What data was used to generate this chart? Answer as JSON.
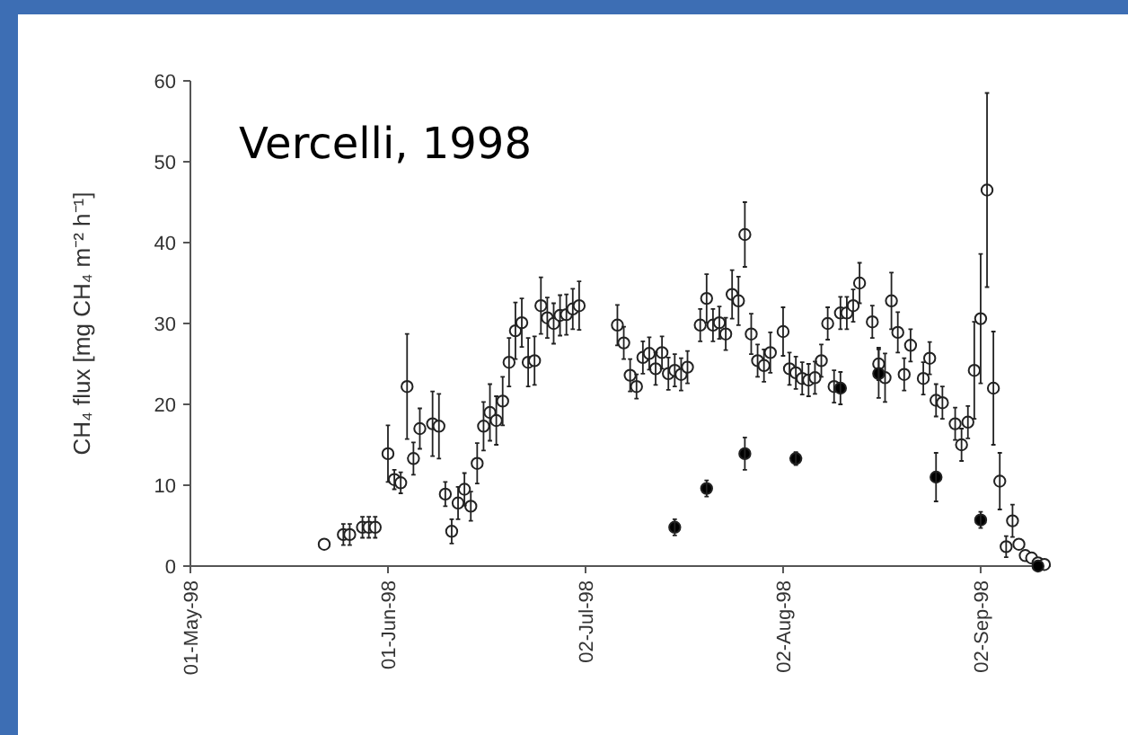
{
  "chart_data": {
    "type": "scatter",
    "title": "Vercelli, 1998",
    "ylabel": "CH₄ flux [mg CH₄ m⁻² h⁻¹]",
    "xlim": [
      "1998-05-01",
      "1998-09-13"
    ],
    "xticks": [
      {
        "value": "1998-05-01",
        "label": "01-May-98"
      },
      {
        "value": "1998-06-01",
        "label": "01-Jun-98"
      },
      {
        "value": "1998-07-02",
        "label": "02-Jul-98"
      },
      {
        "value": "1998-08-02",
        "label": "02-Aug-98"
      },
      {
        "value": "1998-09-02",
        "label": "02-Sep-98"
      }
    ],
    "ylim": [
      0,
      60
    ],
    "yticks": [
      0,
      10,
      20,
      30,
      40,
      50,
      60
    ],
    "grid": false,
    "marker": "circle",
    "series": [
      {
        "color": "#ffffff",
        "x": [
          "1998-05-22",
          "1998-05-25",
          "1998-05-26",
          "1998-05-28",
          "1998-05-29",
          "1998-05-30",
          "1998-06-01",
          "1998-06-02",
          "1998-06-03",
          "1998-06-04",
          "1998-06-05",
          "1998-06-06",
          "1998-06-08",
          "1998-06-09",
          "1998-06-10",
          "1998-06-11",
          "1998-06-12",
          "1998-06-13",
          "1998-06-14",
          "1998-06-15",
          "1998-06-16",
          "1998-06-17",
          "1998-06-18",
          "1998-06-19",
          "1998-06-20",
          "1998-06-21",
          "1998-06-22",
          "1998-06-23",
          "1998-06-24",
          "1998-06-25",
          "1998-06-26",
          "1998-06-27",
          "1998-06-28",
          "1998-06-29",
          "1998-06-30",
          "1998-07-01",
          "1998-07-07",
          "1998-07-08",
          "1998-07-09",
          "1998-07-10",
          "1998-07-11",
          "1998-07-12",
          "1998-07-13",
          "1998-07-14",
          "1998-07-15",
          "1998-07-16",
          "1998-07-17",
          "1998-07-18",
          "1998-07-20",
          "1998-07-21",
          "1998-07-22",
          "1998-07-23",
          "1998-07-24",
          "1998-07-25",
          "1998-07-26",
          "1998-07-27",
          "1998-07-28",
          "1998-07-29",
          "1998-07-30",
          "1998-07-31",
          "1998-08-02",
          "1998-08-03",
          "1998-08-04",
          "1998-08-05",
          "1998-08-06",
          "1998-08-07",
          "1998-08-08",
          "1998-08-09",
          "1998-08-10",
          "1998-08-11",
          "1998-08-12",
          "1998-08-13",
          "1998-08-14",
          "1998-08-16",
          "1998-08-17",
          "1998-08-18",
          "1998-08-19",
          "1998-08-20",
          "1998-08-21",
          "1998-08-22",
          "1998-08-24",
          "1998-08-25",
          "1998-08-26",
          "1998-08-27",
          "1998-08-29",
          "1998-08-30",
          "1998-08-31",
          "1998-09-01",
          "1998-09-02",
          "1998-09-03",
          "1998-09-04",
          "1998-09-05",
          "1998-09-06",
          "1998-09-07",
          "1998-09-08",
          "1998-09-09",
          "1998-09-10",
          "1998-09-11",
          "1998-09-12"
        ],
        "values": [
          2.7,
          3.9,
          3.9,
          4.8,
          4.8,
          4.8,
          13.9,
          10.7,
          10.3,
          22.2,
          13.3,
          17,
          17.6,
          17.3,
          8.9,
          4.3,
          7.8,
          9.5,
          7.4,
          12.7,
          17.3,
          19,
          18,
          20.4,
          25.2,
          29.1,
          30.1,
          25.2,
          25.4,
          32.2,
          30.7,
          30,
          31,
          31.1,
          31.8,
          32.2,
          29.8,
          27.6,
          23.6,
          22.2,
          25.8,
          26.3,
          24.4,
          26.4,
          23.8,
          24.2,
          23.7,
          24.6,
          29.8,
          33.1,
          29.8,
          30.1,
          28.7,
          33.6,
          32.8,
          41,
          28.7,
          25.4,
          24.8,
          26.4,
          29,
          24.4,
          23.9,
          23.2,
          23,
          23.3,
          25.4,
          30,
          22.2,
          31.3,
          31.3,
          32.2,
          35,
          30.2,
          25,
          23.3,
          32.8,
          28.9,
          23.7,
          27.3,
          23.2,
          25.7,
          20.5,
          20.2,
          17.6,
          15,
          17.8,
          24.2,
          30.6,
          46.5,
          22,
          10.5,
          2.4,
          5.6,
          2.7,
          1.3,
          1,
          0.4,
          0.2
        ],
        "errors": [
          null,
          1.3,
          1.3,
          1.3,
          1.3,
          1.3,
          3.5,
          1.2,
          1.3,
          6.5,
          2,
          2.5,
          4,
          4,
          1.5,
          1.5,
          2,
          2,
          1.8,
          2.5,
          3,
          3.5,
          3,
          3,
          3,
          3.5,
          3,
          3,
          3,
          3.5,
          2.5,
          2.5,
          2.5,
          2.5,
          2.5,
          3,
          2.5,
          2,
          2,
          1.5,
          2,
          2,
          2,
          2,
          2,
          2,
          2,
          2,
          2,
          3,
          2,
          2,
          2,
          3,
          3,
          4,
          2.5,
          2,
          2,
          2.5,
          3,
          2,
          2,
          2,
          2,
          2,
          2,
          2,
          2,
          2,
          2,
          2,
          2.5,
          2,
          2,
          3,
          3.5,
          2.5,
          2,
          2,
          2,
          2,
          2,
          2,
          2,
          2,
          2,
          6,
          8,
          12,
          7,
          3.5,
          1.3,
          2,
          null,
          null,
          null,
          null,
          null
        ]
      },
      {
        "color": "#000000",
        "x": [
          "1998-07-16",
          "1998-07-21",
          "1998-07-27",
          "1998-08-04",
          "1998-08-11",
          "1998-08-17",
          "1998-08-26",
          "1998-09-02",
          "1998-09-11"
        ],
        "values": [
          4.8,
          9.6,
          13.9,
          13.3,
          22,
          23.8,
          11,
          5.7,
          0
        ],
        "errors": [
          1,
          1,
          2,
          0.8,
          2,
          3,
          3,
          1,
          null
        ]
      }
    ]
  }
}
